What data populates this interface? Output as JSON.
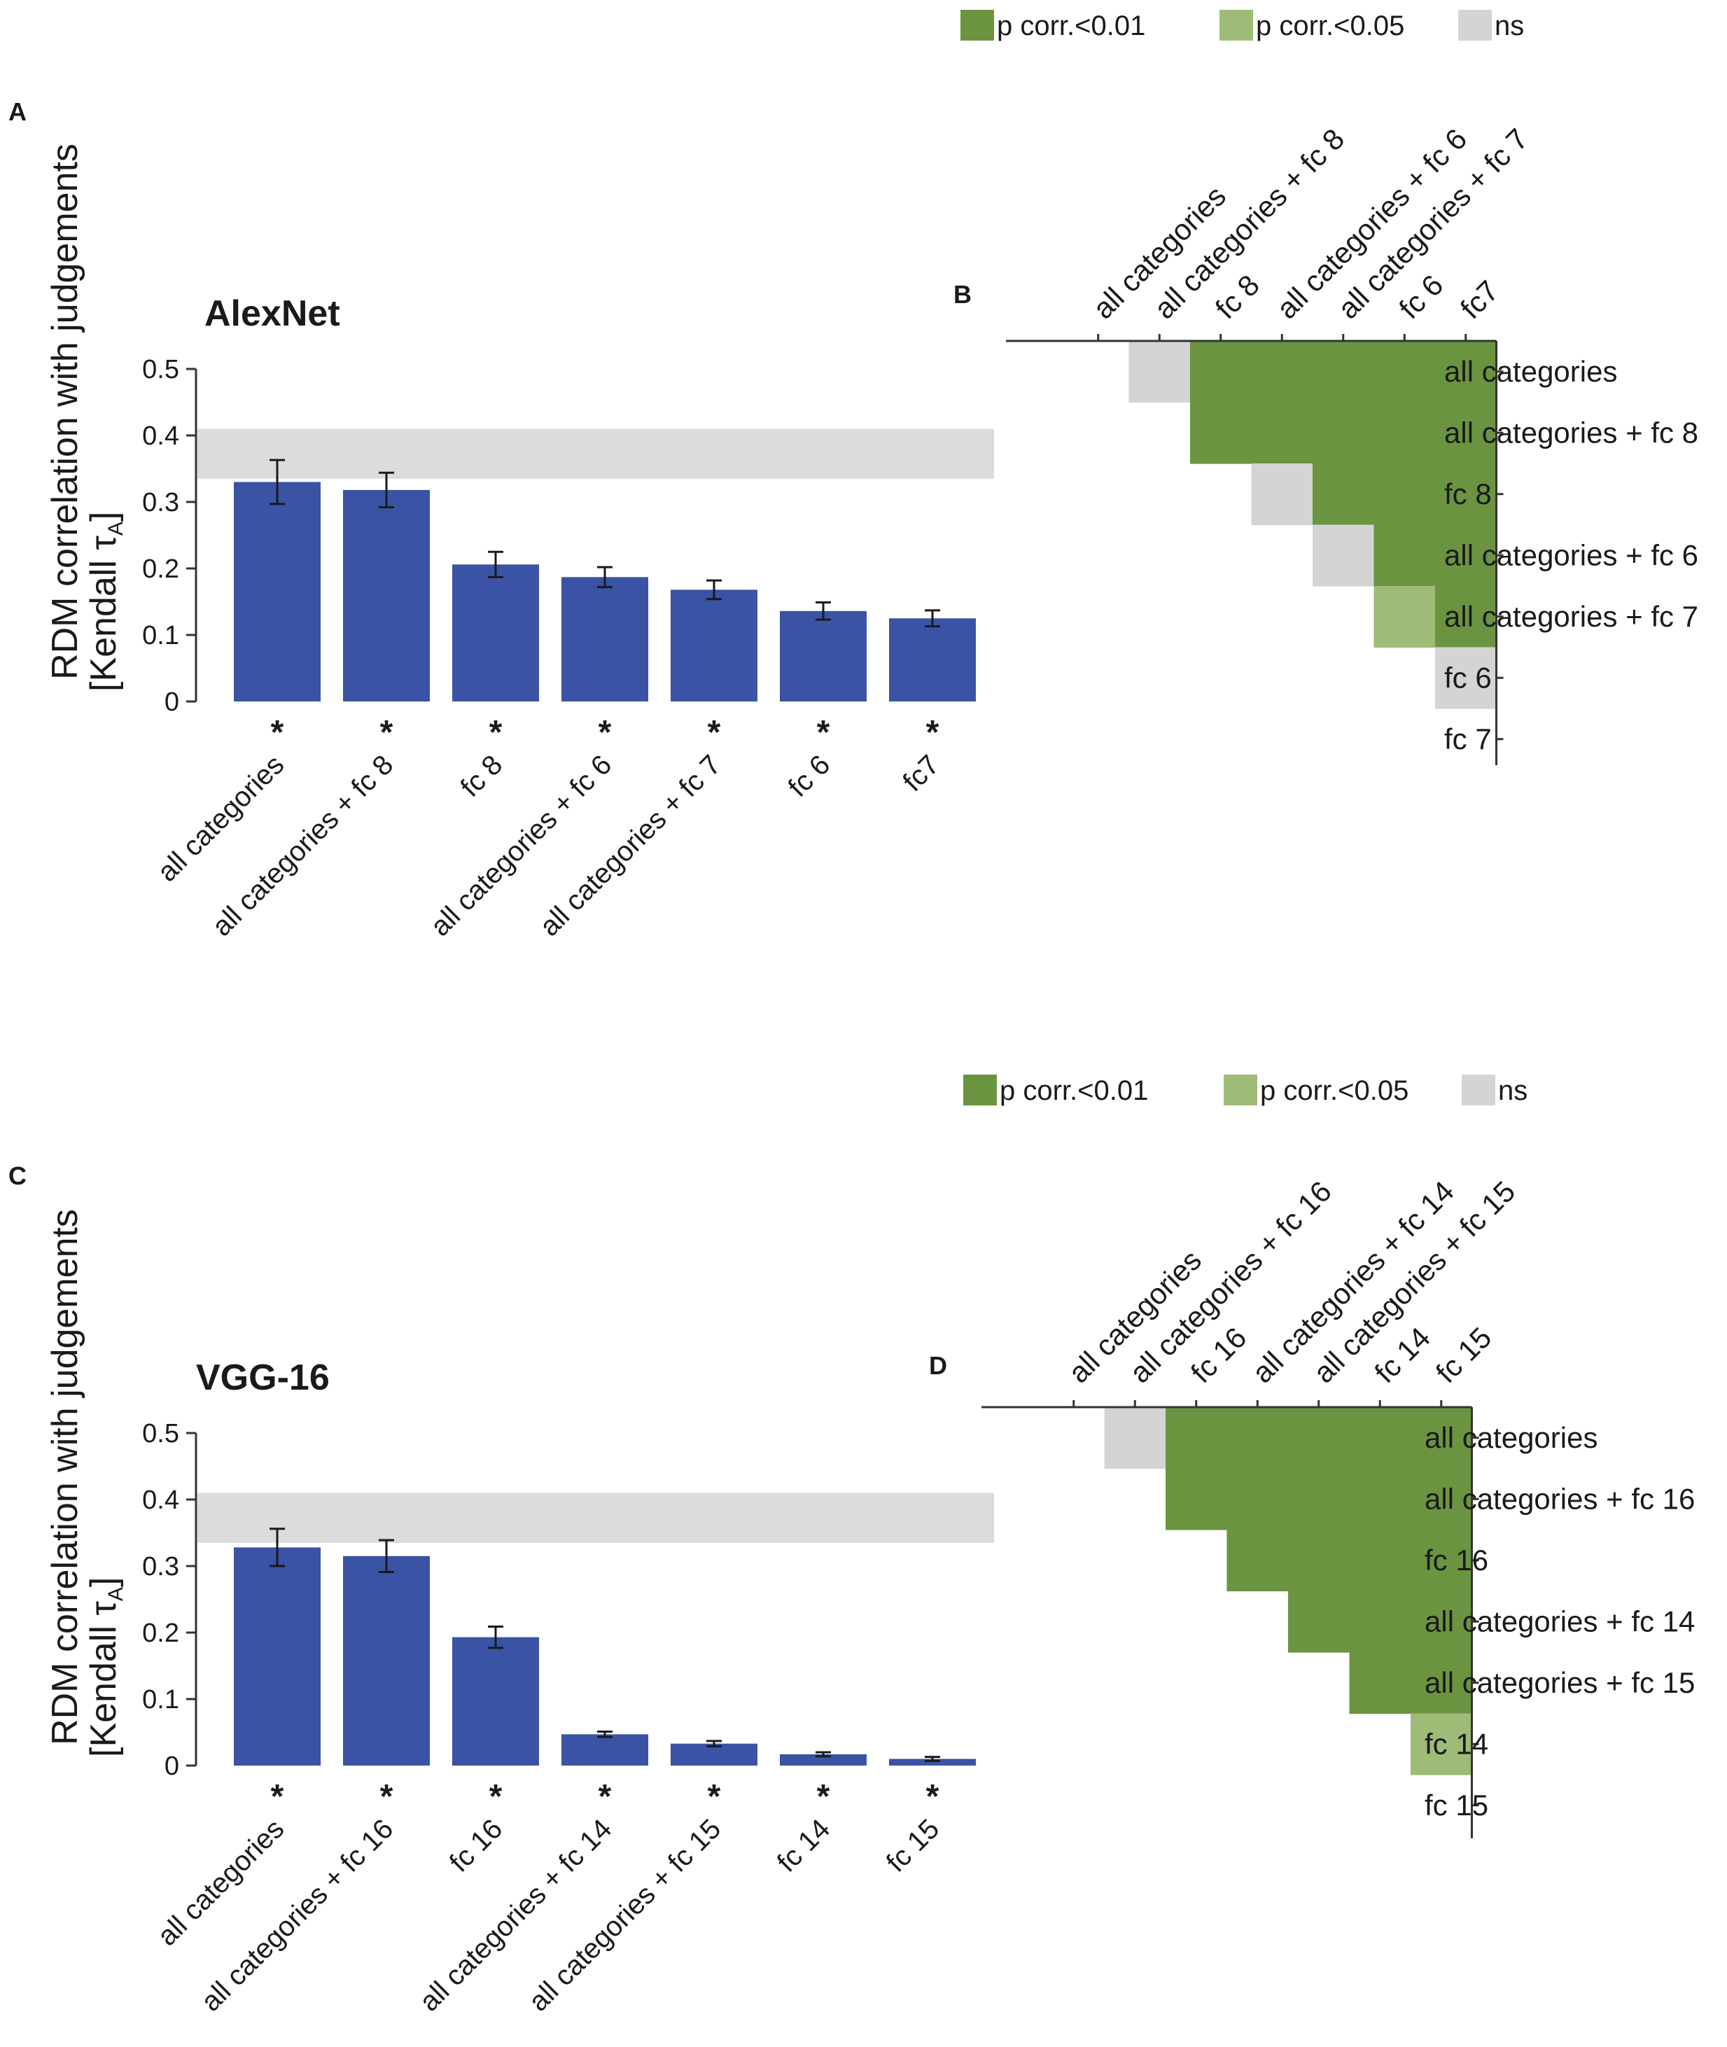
{
  "colors": {
    "bar": "#3a53a4",
    "noise_ceiling": "#dcdcdc",
    "p01": "#6b9440",
    "p05": "#9ebb78",
    "ns": "#d4d4d4",
    "axis": "#333333"
  },
  "legend": {
    "items": [
      {
        "label": "p corr.<0.01",
        "color": "#6b9440"
      },
      {
        "label": "p corr.<0.05",
        "color": "#9ebb78"
      },
      {
        "label": "ns",
        "color": "#d4d4d4"
      }
    ]
  },
  "chart_data": [
    {
      "panel": "A",
      "type": "bar",
      "title": "AlexNet",
      "ylabel_line1": "RDM correlation with judgements",
      "ylabel_line2": "[Kendall τ",
      "ylabel_sub": "A",
      "ylabel_close": "]",
      "ylim": [
        0,
        0.5
      ],
      "yticks": [
        "0",
        "0.1",
        "0.2",
        "0.3",
        "0.4",
        "0.5"
      ],
      "noise_ceiling": [
        0.335,
        0.41
      ],
      "categories": [
        "all categories",
        "all categories + fc 8",
        "fc 8",
        "all categories + fc 6",
        "all categories + fc 7",
        "fc 6",
        "fc7"
      ],
      "values": [
        0.33,
        0.318,
        0.206,
        0.187,
        0.168,
        0.136,
        0.125
      ],
      "errors": [
        0.033,
        0.026,
        0.019,
        0.015,
        0.014,
        0.013,
        0.012
      ],
      "significance": [
        "*",
        "*",
        "*",
        "*",
        "*",
        "*",
        "*"
      ]
    },
    {
      "panel": "C",
      "type": "bar",
      "title": "VGG-16",
      "ylabel_line1": "RDM correlation with judgements",
      "ylabel_line2": "[Kendall τ",
      "ylabel_sub": "A",
      "ylabel_close": "]",
      "ylim": [
        0,
        0.5
      ],
      "yticks": [
        "0",
        "0.1",
        "0.2",
        "0.3",
        "0.4",
        "0.5"
      ],
      "noise_ceiling": [
        0.335,
        0.41
      ],
      "categories": [
        "all categories",
        "all categories + fc 16",
        "fc 16",
        "all categories + fc 14",
        "all categories + fc 15",
        "fc 14",
        "fc 15"
      ],
      "values": [
        0.328,
        0.315,
        0.193,
        0.047,
        0.033,
        0.017,
        0.01
      ],
      "errors": [
        0.028,
        0.024,
        0.016,
        0.004,
        0.004,
        0.003,
        0.003
      ],
      "significance": [
        "*",
        "*",
        "*",
        "*",
        "*",
        "*",
        "*"
      ]
    },
    {
      "panel": "B",
      "type": "heatmap",
      "labels": [
        "all categories",
        "all categories + fc 8",
        "fc 8",
        "all categories + fc 6",
        "all categories + fc 7",
        "fc 6",
        "fc7"
      ],
      "row_labels": [
        "all categories",
        "all categories + fc 8",
        "fc 8",
        "all categories + fc 6",
        "all categories + fc 7",
        "fc 6",
        "fc 7"
      ],
      "matrix": [
        [
          null,
          "ns",
          "p01",
          "p01",
          "p01",
          "p01",
          "p01"
        ],
        [
          null,
          null,
          "p01",
          "p01",
          "p01",
          "p01",
          "p01"
        ],
        [
          null,
          null,
          null,
          "ns",
          "p01",
          "p01",
          "p01"
        ],
        [
          null,
          null,
          null,
          null,
          "ns",
          "p01",
          "p01"
        ],
        [
          null,
          null,
          null,
          null,
          null,
          "p05",
          "p01"
        ],
        [
          null,
          null,
          null,
          null,
          null,
          null,
          "ns"
        ],
        [
          null,
          null,
          null,
          null,
          null,
          null,
          null
        ]
      ]
    },
    {
      "panel": "D",
      "type": "heatmap",
      "labels": [
        "all categories",
        "all categories + fc 16",
        "fc 16",
        "all categories + fc 14",
        "all categories + fc 15",
        "fc 14",
        "fc 15"
      ],
      "row_labels": [
        "all categories",
        "all categories + fc 16",
        "fc 16",
        "all categories + fc 14",
        "all categories + fc 15",
        "fc 14",
        "fc 15"
      ],
      "matrix": [
        [
          null,
          "ns",
          "p01",
          "p01",
          "p01",
          "p01",
          "p01"
        ],
        [
          null,
          null,
          "p01",
          "p01",
          "p01",
          "p01",
          "p01"
        ],
        [
          null,
          null,
          null,
          "p01",
          "p01",
          "p01",
          "p01"
        ],
        [
          null,
          null,
          null,
          null,
          "p01",
          "p01",
          "p01"
        ],
        [
          null,
          null,
          null,
          null,
          null,
          "p01",
          "p01"
        ],
        [
          null,
          null,
          null,
          null,
          null,
          null,
          "p05"
        ],
        [
          null,
          null,
          null,
          null,
          null,
          null,
          null
        ]
      ]
    }
  ]
}
